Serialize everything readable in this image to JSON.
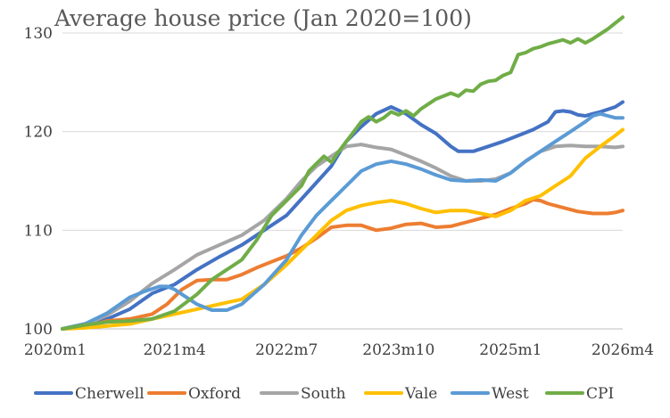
{
  "chart_data": {
    "type": "line",
    "title": "Average house price (Jan 2020=100)",
    "xlabel": "",
    "ylabel": "",
    "x_ticks": [
      "2020m1",
      "2021m4",
      "2022m7",
      "2023m10",
      "2025m1",
      "2026m4"
    ],
    "x_index_range": [
      0,
      75
    ],
    "ylim": [
      100,
      130
    ],
    "y_ticks": [
      100,
      110,
      120,
      130
    ],
    "grid": "horizontal",
    "legend_position": "bottom",
    "series": [
      {
        "name": "Cherwell",
        "color": "#4472c4",
        "values": [
          [
            0,
            100
          ],
          [
            3,
            100.5
          ],
          [
            6,
            101
          ],
          [
            9,
            102
          ],
          [
            12,
            103.6
          ],
          [
            15,
            104.5
          ],
          [
            18,
            106
          ],
          [
            21,
            107.3
          ],
          [
            24,
            108.5
          ],
          [
            27,
            110
          ],
          [
            30,
            111.5
          ],
          [
            33,
            114
          ],
          [
            36,
            116.5
          ],
          [
            38,
            119
          ],
          [
            40,
            120.5
          ],
          [
            42,
            121.8
          ],
          [
            44,
            122.5
          ],
          [
            46,
            121.8
          ],
          [
            48,
            120.7
          ],
          [
            50,
            119.8
          ],
          [
            52,
            118.5
          ],
          [
            53,
            118
          ],
          [
            55,
            118
          ],
          [
            57,
            118.5
          ],
          [
            59,
            119
          ],
          [
            61,
            119.6
          ],
          [
            63,
            120.2
          ],
          [
            65,
            121
          ],
          [
            66,
            122
          ],
          [
            67,
            122.1
          ],
          [
            68,
            122
          ],
          [
            69,
            121.7
          ],
          [
            70,
            121.6
          ],
          [
            71,
            121.8
          ],
          [
            72,
            122
          ],
          [
            74,
            122.5
          ],
          [
            75,
            123
          ]
        ]
      },
      {
        "name": "Oxford",
        "color": "#ed7d31",
        "values": [
          [
            0,
            100
          ],
          [
            3,
            100.2
          ],
          [
            6,
            100.8
          ],
          [
            9,
            101
          ],
          [
            12,
            101.5
          ],
          [
            14,
            102.5
          ],
          [
            16,
            104
          ],
          [
            18,
            104.9
          ],
          [
            20,
            105
          ],
          [
            22,
            105
          ],
          [
            24,
            105.5
          ],
          [
            26,
            106.2
          ],
          [
            28,
            106.8
          ],
          [
            30,
            107.4
          ],
          [
            32,
            108.2
          ],
          [
            34,
            109.2
          ],
          [
            36,
            110.3
          ],
          [
            38,
            110.5
          ],
          [
            40,
            110.5
          ],
          [
            42,
            110
          ],
          [
            44,
            110.2
          ],
          [
            46,
            110.6
          ],
          [
            48,
            110.7
          ],
          [
            50,
            110.3
          ],
          [
            52,
            110.4
          ],
          [
            54,
            110.8
          ],
          [
            56,
            111.2
          ],
          [
            58,
            111.6
          ],
          [
            60,
            112.2
          ],
          [
            62,
            112.7
          ],
          [
            63,
            113.1
          ],
          [
            64,
            113
          ],
          [
            65,
            112.7
          ],
          [
            67,
            112.3
          ],
          [
            69,
            111.9
          ],
          [
            71,
            111.7
          ],
          [
            73,
            111.7
          ],
          [
            74,
            111.8
          ],
          [
            75,
            112
          ]
        ]
      },
      {
        "name": "South",
        "color": "#a5a5a5",
        "values": [
          [
            0,
            100
          ],
          [
            3,
            100.4
          ],
          [
            6,
            101.4
          ],
          [
            9,
            102.8
          ],
          [
            12,
            104.6
          ],
          [
            15,
            106
          ],
          [
            18,
            107.5
          ],
          [
            21,
            108.5
          ],
          [
            24,
            109.5
          ],
          [
            27,
            111
          ],
          [
            30,
            113.2
          ],
          [
            32,
            115
          ],
          [
            34,
            116.5
          ],
          [
            36,
            117.5
          ],
          [
            38,
            118.5
          ],
          [
            40,
            118.7
          ],
          [
            42,
            118.4
          ],
          [
            44,
            118.2
          ],
          [
            46,
            117.6
          ],
          [
            48,
            117
          ],
          [
            50,
            116.3
          ],
          [
            52,
            115.5
          ],
          [
            54,
            115
          ],
          [
            56,
            115
          ],
          [
            58,
            115.2
          ],
          [
            60,
            115.8
          ],
          [
            62,
            117
          ],
          [
            64,
            118
          ],
          [
            66,
            118.5
          ],
          [
            68,
            118.6
          ],
          [
            70,
            118.5
          ],
          [
            72,
            118.5
          ],
          [
            74,
            118.4
          ],
          [
            75,
            118.5
          ]
        ]
      },
      {
        "name": "Vale",
        "color": "#ffc000",
        "values": [
          [
            0,
            100
          ],
          [
            3,
            100.1
          ],
          [
            6,
            100.3
          ],
          [
            9,
            100.5
          ],
          [
            12,
            101
          ],
          [
            15,
            101.5
          ],
          [
            18,
            102
          ],
          [
            21,
            102.5
          ],
          [
            24,
            103
          ],
          [
            27,
            104.5
          ],
          [
            30,
            106.5
          ],
          [
            32,
            108
          ],
          [
            34,
            109.5
          ],
          [
            36,
            111
          ],
          [
            38,
            112
          ],
          [
            40,
            112.5
          ],
          [
            42,
            112.8
          ],
          [
            44,
            113
          ],
          [
            46,
            112.7
          ],
          [
            48,
            112.2
          ],
          [
            50,
            111.8
          ],
          [
            52,
            112
          ],
          [
            54,
            112
          ],
          [
            56,
            111.7
          ],
          [
            58,
            111.4
          ],
          [
            60,
            112
          ],
          [
            62,
            113
          ],
          [
            64,
            113.5
          ],
          [
            66,
            114.5
          ],
          [
            68,
            115.5
          ],
          [
            70,
            117.3
          ],
          [
            72,
            118.5
          ],
          [
            74,
            119.6
          ],
          [
            75,
            120.2
          ]
        ]
      },
      {
        "name": "West",
        "color": "#5b9bd5",
        "values": [
          [
            0,
            100
          ],
          [
            3,
            100.5
          ],
          [
            6,
            101.6
          ],
          [
            9,
            103.2
          ],
          [
            11,
            103.8
          ],
          [
            13,
            104.3
          ],
          [
            14,
            104.3
          ],
          [
            15,
            104
          ],
          [
            16,
            103.5
          ],
          [
            18,
            102.5
          ],
          [
            20,
            101.9
          ],
          [
            22,
            101.9
          ],
          [
            24,
            102.5
          ],
          [
            27,
            104.5
          ],
          [
            30,
            107
          ],
          [
            32,
            109.5
          ],
          [
            34,
            111.5
          ],
          [
            36,
            113
          ],
          [
            38,
            114.5
          ],
          [
            40,
            116
          ],
          [
            42,
            116.7
          ],
          [
            44,
            117
          ],
          [
            46,
            116.7
          ],
          [
            48,
            116.2
          ],
          [
            50,
            115.6
          ],
          [
            52,
            115.1
          ],
          [
            54,
            115
          ],
          [
            56,
            115.1
          ],
          [
            58,
            115
          ],
          [
            60,
            115.8
          ],
          [
            62,
            117
          ],
          [
            64,
            118
          ],
          [
            66,
            119
          ],
          [
            68,
            120
          ],
          [
            70,
            121
          ],
          [
            71,
            121.6
          ],
          [
            72,
            121.8
          ],
          [
            73,
            121.6
          ],
          [
            74,
            121.4
          ],
          [
            75,
            121.4
          ]
        ]
      },
      {
        "name": "CPI",
        "color": "#70ad47",
        "values": [
          [
            0,
            100
          ],
          [
            3,
            100.4
          ],
          [
            6,
            100.7
          ],
          [
            9,
            100.8
          ],
          [
            12,
            101
          ],
          [
            15,
            101.8
          ],
          [
            18,
            103.5
          ],
          [
            20,
            105
          ],
          [
            22,
            106
          ],
          [
            24,
            107
          ],
          [
            26,
            109
          ],
          [
            28,
            111.5
          ],
          [
            30,
            113
          ],
          [
            32,
            114.5
          ],
          [
            33,
            116
          ],
          [
            35,
            117.5
          ],
          [
            36,
            116.9
          ],
          [
            37,
            118
          ],
          [
            39,
            120
          ],
          [
            40,
            121
          ],
          [
            41,
            121.5
          ],
          [
            42,
            121
          ],
          [
            43,
            121.4
          ],
          [
            44,
            122
          ],
          [
            45,
            121.7
          ],
          [
            46,
            122.1
          ],
          [
            47,
            121.6
          ],
          [
            48,
            122.3
          ],
          [
            50,
            123.3
          ],
          [
            52,
            123.9
          ],
          [
            53,
            123.6
          ],
          [
            54,
            124.2
          ],
          [
            55,
            124.1
          ],
          [
            56,
            124.8
          ],
          [
            57,
            125.1
          ],
          [
            58,
            125.2
          ],
          [
            59,
            125.7
          ],
          [
            60,
            126
          ],
          [
            61,
            127.8
          ],
          [
            62,
            128
          ],
          [
            63,
            128.4
          ],
          [
            64,
            128.6
          ],
          [
            65,
            128.9
          ],
          [
            66,
            129.1
          ],
          [
            67,
            129.3
          ],
          [
            68,
            129
          ],
          [
            69,
            129.4
          ],
          [
            70,
            129
          ],
          [
            71,
            129.4
          ],
          [
            72,
            129.9
          ],
          [
            73,
            130.4
          ],
          [
            74,
            131
          ],
          [
            75,
            131.6
          ]
        ]
      }
    ]
  }
}
